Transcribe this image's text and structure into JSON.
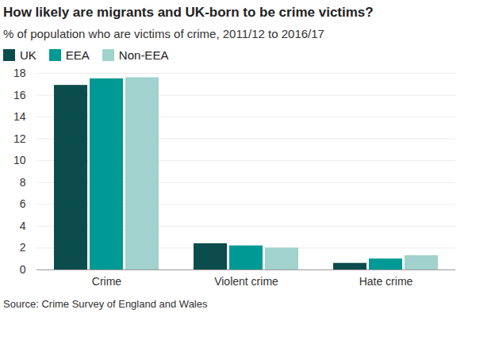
{
  "chart_data": {
    "type": "bar",
    "title": "How likely are migrants and UK-born to be crime victims?",
    "subtitle": "% of population who are victims of crime, 2011/12 to 2016/17",
    "source": "Source: Crime Survey of England and Wales",
    "categories": [
      "Crime",
      "Violent crime",
      "Hate crime"
    ],
    "series": [
      {
        "name": "UK",
        "color": "#0b4c4c",
        "values": [
          16.9,
          2.4,
          0.6
        ]
      },
      {
        "name": "EEA",
        "color": "#009994",
        "values": [
          17.5,
          2.2,
          1.0
        ]
      },
      {
        "name": "Non-EEA",
        "color": "#a1d2cd",
        "values": [
          17.6,
          2.0,
          1.3
        ]
      }
    ],
    "ylim": [
      0,
      18
    ],
    "yticks": [
      0,
      2,
      4,
      6,
      8,
      10,
      12,
      14,
      16,
      18
    ],
    "grid": true,
    "legend": "top-left"
  }
}
